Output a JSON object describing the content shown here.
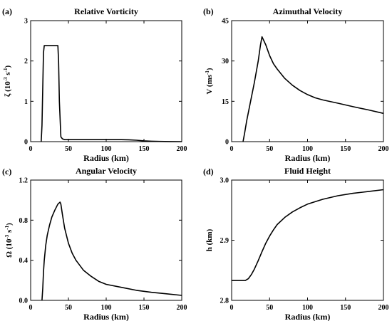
{
  "chart_data": [
    {
      "type": "line",
      "panel_label": "(a)",
      "title": "Relative Vorticity",
      "xlabel": "Radius (km)",
      "ylabel": {
        "symbol": "ζ",
        "scale": "(10",
        "exp1": "-3",
        "mid": " s",
        "exp2": "-1",
        "close": ")"
      },
      "xlim": [
        0,
        200
      ],
      "ylim": [
        0,
        3
      ],
      "xticks": [
        0,
        50,
        100,
        150,
        200
      ],
      "xtick_labels": [
        "0",
        "50",
        "100",
        "150",
        "200"
      ],
      "yticks": [
        0,
        1,
        2,
        3
      ],
      "ytick_labels": [
        "0",
        "1",
        "2",
        "3"
      ],
      "series": [
        {
          "x": [
            14,
            15,
            17,
            18,
            35,
            36,
            37,
            38,
            40,
            42,
            45,
            60,
            80,
            100,
            120,
            130,
            140,
            150,
            160,
            170,
            185,
            200
          ],
          "y": [
            0,
            0.4,
            2.2,
            2.38,
            2.38,
            2.38,
            2.0,
            1.0,
            0.12,
            0.07,
            0.05,
            0.05,
            0.05,
            0.05,
            0.05,
            0.045,
            0.035,
            0.02,
            0.01,
            0.005,
            0.002,
            0
          ]
        }
      ]
    },
    {
      "type": "line",
      "panel_label": "(b)",
      "title": "Azimuthal Velocity",
      "xlabel": "Radius (km)",
      "ylabel": {
        "symbol": "V",
        "scale": "(ms",
        "exp1": "-1",
        "mid": "",
        "exp2": "",
        "close": ")"
      },
      "xlim": [
        0,
        200
      ],
      "ylim": [
        0,
        45
      ],
      "xticks": [
        0,
        50,
        100,
        150,
        200
      ],
      "xtick_labels": [
        "0",
        "50",
        "100",
        "150",
        "200"
      ],
      "yticks": [
        0,
        15,
        30,
        45
      ],
      "ytick_labels": [
        "0",
        "15",
        "30",
        "45"
      ],
      "series": [
        {
          "x": [
            15,
            17,
            20,
            25,
            30,
            35,
            38,
            40,
            45,
            50,
            55,
            60,
            70,
            80,
            90,
            100,
            110,
            120,
            140,
            160,
            180,
            200
          ],
          "y": [
            0,
            3,
            8,
            15,
            22,
            30,
            36,
            39,
            36,
            32,
            29,
            27,
            23.5,
            21,
            19,
            17.5,
            16.3,
            15.5,
            14.3,
            13,
            11.8,
            10.5
          ]
        }
      ]
    },
    {
      "type": "line",
      "panel_label": "(c)",
      "title": "Angular Velocity",
      "xlabel": "Radius (km)",
      "ylabel": {
        "symbol": "Ω",
        "scale": "(10",
        "exp1": "-3",
        "mid": " s",
        "exp2": "-1",
        "close": ")"
      },
      "xlim": [
        0,
        200
      ],
      "ylim": [
        0,
        1.2
      ],
      "xticks": [
        0,
        50,
        100,
        150,
        200
      ],
      "xtick_labels": [
        "0",
        "50",
        "100",
        "150",
        "200"
      ],
      "yticks": [
        0,
        0.4,
        0.8,
        1.2
      ],
      "ytick_labels": [
        "0.0",
        "0.4",
        "0.8",
        "1.2"
      ],
      "series": [
        {
          "x": [
            15,
            16,
            17,
            18,
            20,
            22,
            25,
            28,
            32,
            36,
            39,
            40,
            42,
            45,
            50,
            55,
            60,
            70,
            80,
            90,
            100,
            120,
            140,
            160,
            180,
            200
          ],
          "y": [
            0,
            0.12,
            0.28,
            0.4,
            0.55,
            0.65,
            0.75,
            0.83,
            0.9,
            0.96,
            0.98,
            0.96,
            0.86,
            0.72,
            0.57,
            0.47,
            0.4,
            0.3,
            0.24,
            0.19,
            0.16,
            0.13,
            0.1,
            0.08,
            0.065,
            0.05
          ]
        }
      ]
    },
    {
      "type": "line",
      "panel_label": "(d)",
      "title": "Fluid Height",
      "xlabel": "Radius (km)",
      "ylabel": {
        "symbol": "h",
        "scale": "(km)",
        "exp1": "",
        "mid": "",
        "exp2": "",
        "close": ""
      },
      "xlim": [
        0,
        200
      ],
      "ylim": [
        2.8,
        3.0
      ],
      "xticks": [
        0,
        50,
        100,
        150,
        200
      ],
      "xtick_labels": [
        "0",
        "50",
        "100",
        "150",
        "200"
      ],
      "yticks": [
        2.8,
        2.9,
        3.0
      ],
      "ytick_labels": [
        "2.8",
        "2.9",
        "3.0"
      ],
      "series": [
        {
          "x": [
            0,
            10,
            18,
            22,
            26,
            30,
            35,
            40,
            45,
            50,
            55,
            60,
            70,
            80,
            90,
            100,
            120,
            140,
            160,
            180,
            200
          ],
          "y": [
            2.833,
            2.833,
            2.833,
            2.836,
            2.843,
            2.852,
            2.866,
            2.881,
            2.895,
            2.907,
            2.917,
            2.926,
            2.938,
            2.947,
            2.954,
            2.96,
            2.968,
            2.974,
            2.978,
            2.981,
            2.984
          ]
        }
      ]
    }
  ]
}
